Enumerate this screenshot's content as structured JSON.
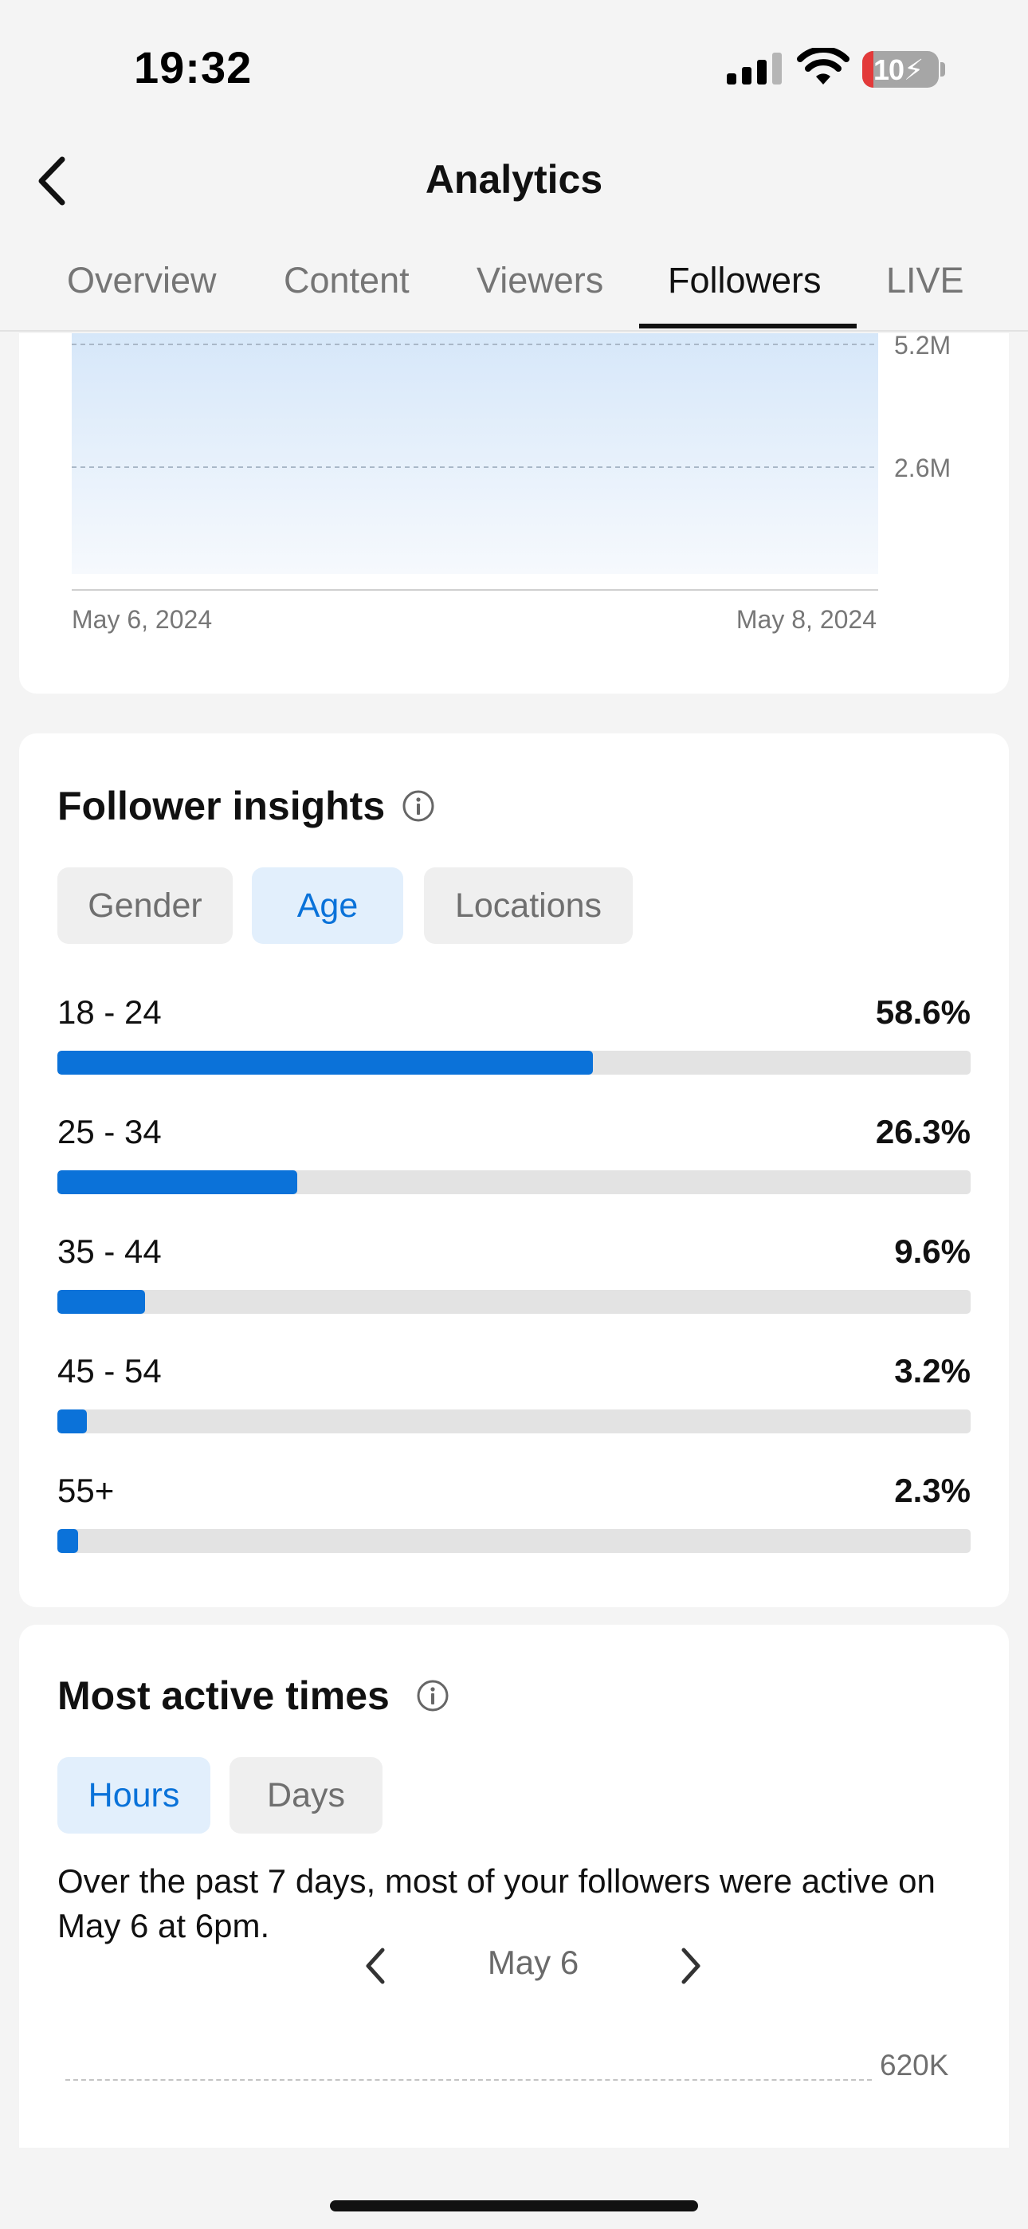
{
  "status_bar": {
    "time": "19:32",
    "battery": "10"
  },
  "header": {
    "title": "Analytics"
  },
  "tabs": [
    {
      "label": "Overview",
      "active": false
    },
    {
      "label": "Content",
      "active": false
    },
    {
      "label": "Viewers",
      "active": false
    },
    {
      "label": "Followers",
      "active": true
    },
    {
      "label": "LIVE",
      "active": false
    }
  ],
  "follower_chart": {
    "y_labels": [
      "5.2M",
      "2.6M"
    ],
    "x_labels": [
      "May 6, 2024",
      "May 8, 2024"
    ]
  },
  "insights": {
    "title": "Follower insights",
    "filters": [
      {
        "label": "Gender",
        "active": false
      },
      {
        "label": "Age",
        "active": true
      },
      {
        "label": "Locations",
        "active": false
      }
    ],
    "age_groups": [
      {
        "label": "18 - 24",
        "value": "58.6%",
        "percent": 58.6
      },
      {
        "label": "25 - 34",
        "value": "26.3%",
        "percent": 26.3
      },
      {
        "label": "35 - 44",
        "value": "9.6%",
        "percent": 9.6
      },
      {
        "label": "45 - 54",
        "value": "3.2%",
        "percent": 3.2
      },
      {
        "label": "55+",
        "value": "2.3%",
        "percent": 2.3
      }
    ]
  },
  "active_times": {
    "title": "Most active times",
    "filters": [
      {
        "label": "Hours",
        "active": true
      },
      {
        "label": "Days",
        "active": false
      }
    ],
    "description": "Over the past 7 days, most of your followers were active on May 6 at 6pm.",
    "date": "May 6",
    "y_label": "620K"
  },
  "colors": {
    "accent": "#0b72d9",
    "chip_active_bg": "#e2effc",
    "track": "#e3e3e3",
    "background": "#f4f4f4"
  }
}
